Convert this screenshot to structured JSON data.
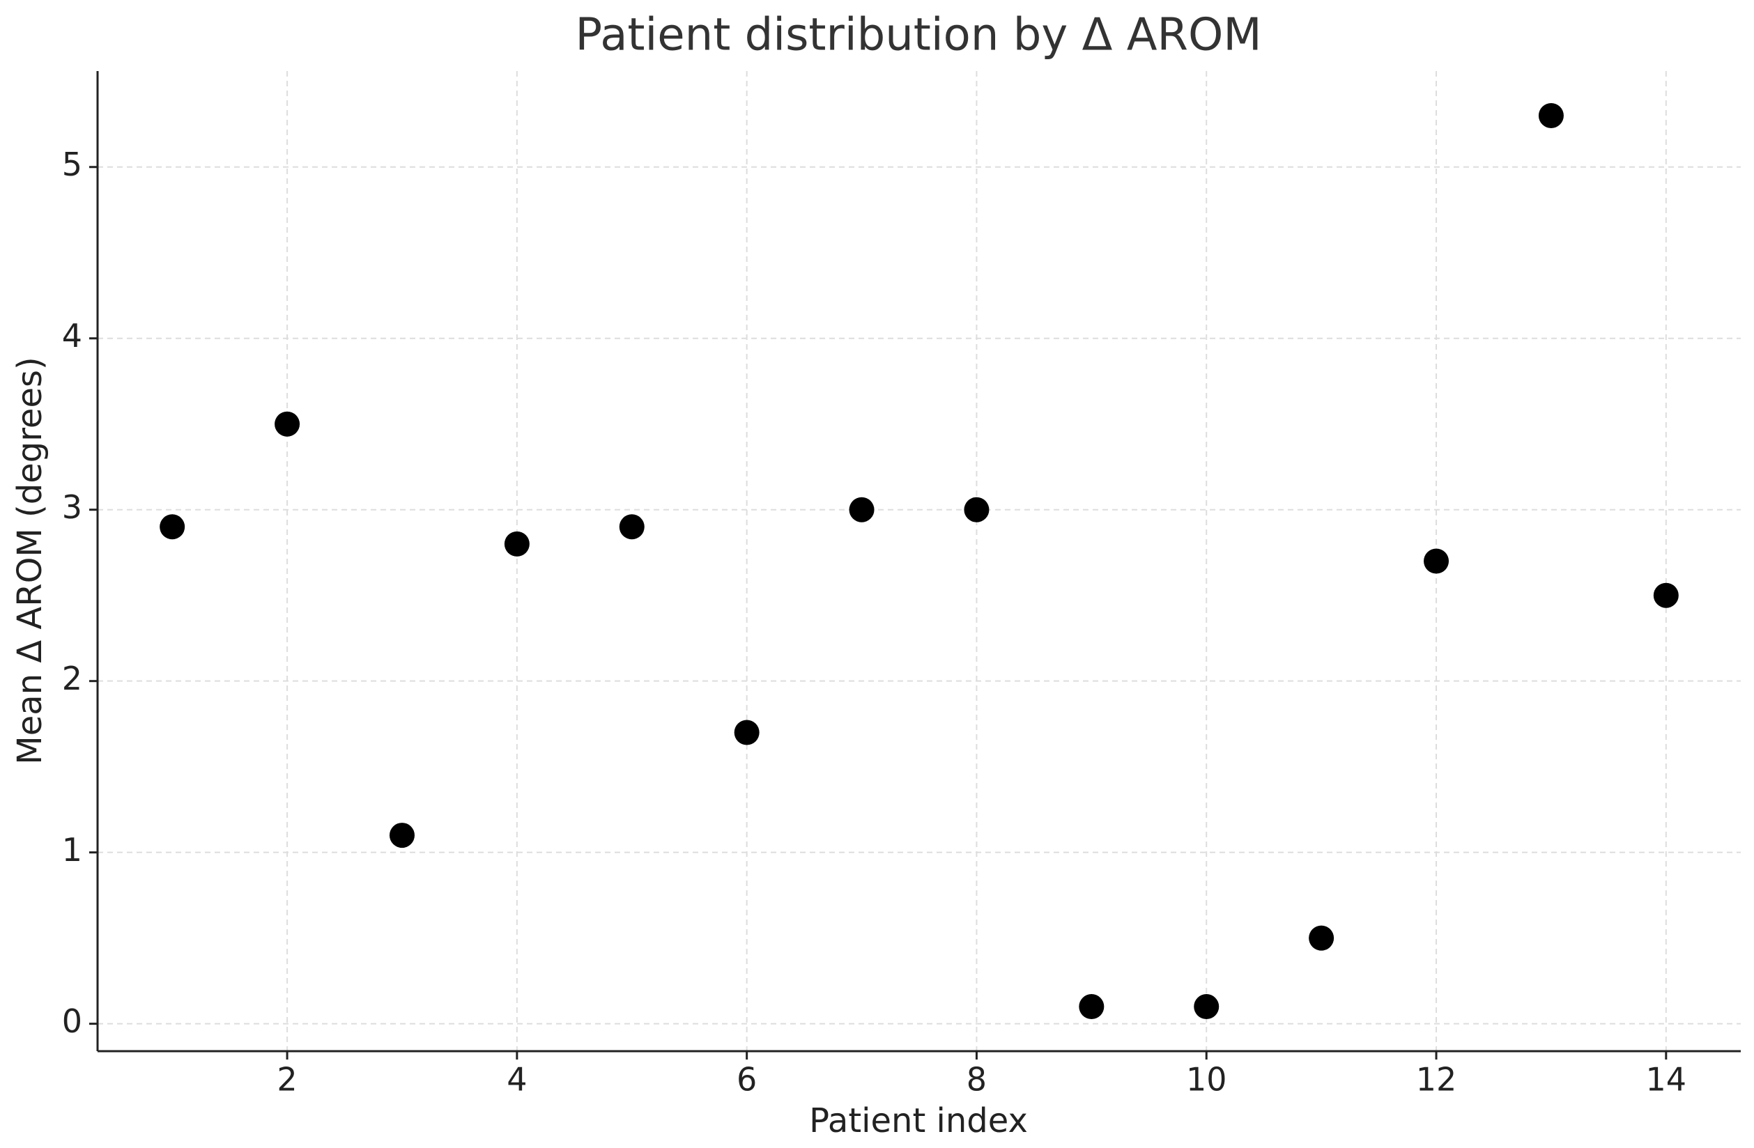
{
  "chart_data": {
    "type": "scatter",
    "title": "Patient distribution by Δ AROM",
    "x_label": "Patient index",
    "y_label": "Mean Δ AROM (degrees)",
    "x": [
      1,
      2,
      3,
      4,
      5,
      6,
      7,
      8,
      9,
      10,
      11,
      12,
      13,
      14
    ],
    "values": [
      2.9,
      3.5,
      1.1,
      2.8,
      2.9,
      1.7,
      3.0,
      3.0,
      0.1,
      0.1,
      0.5,
      2.7,
      5.3,
      2.5
    ],
    "color": "#000000",
    "xlim": [
      0.35,
      14.65
    ],
    "ylim": [
      -0.16,
      5.56
    ],
    "xticks": [
      2,
      4,
      6,
      8,
      10,
      12,
      14
    ],
    "yticks": [
      0,
      1,
      2,
      3,
      4,
      5
    ],
    "grid": true
  }
}
